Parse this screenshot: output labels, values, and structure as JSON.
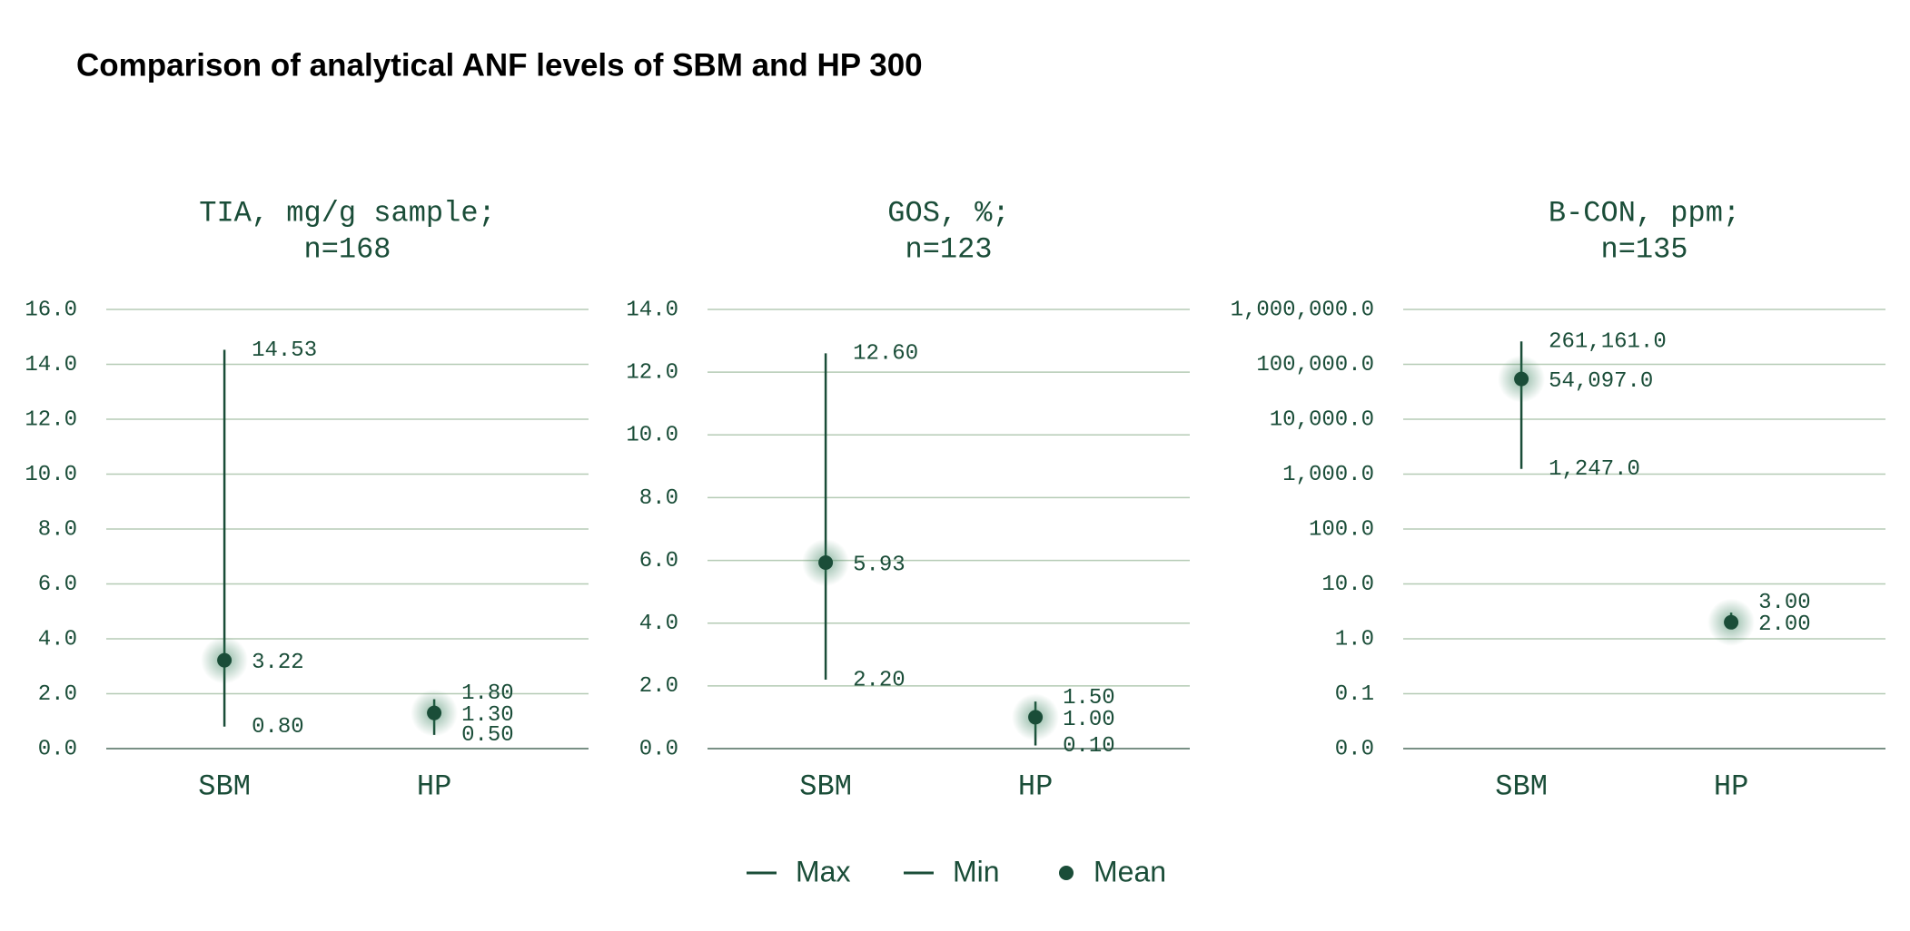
{
  "title": "Comparison of analytical ANF levels of SBM and HP 300",
  "chart_data": [
    {
      "type": "range",
      "title": [
        "TIA, mg/g sample;",
        "n=168"
      ],
      "categories": [
        "SBM",
        "HP"
      ],
      "ylim": [
        0,
        16
      ],
      "yticks": [
        {
          "value": 0,
          "label": "0.0"
        },
        {
          "value": 2,
          "label": "2.0"
        },
        {
          "value": 4,
          "label": "4.0"
        },
        {
          "value": 6,
          "label": "6.0"
        },
        {
          "value": 8,
          "label": "8.0"
        },
        {
          "value": 10,
          "label": "10.0"
        },
        {
          "value": 12,
          "label": "12.0"
        },
        {
          "value": 14,
          "label": "14.0"
        },
        {
          "value": 16,
          "label": "16.0"
        }
      ],
      "grid": true,
      "series": [
        {
          "name": "Max",
          "color": "#1a4d38",
          "marker": "line",
          "values": [
            14.53,
            1.8
          ],
          "value_labels": [
            "14.53",
            "1.80"
          ]
        },
        {
          "name": "Min",
          "color": "#1a4d38",
          "marker": "line",
          "values": [
            0.8,
            0.5
          ],
          "value_labels": [
            "0.80",
            "0.50"
          ]
        },
        {
          "name": "Mean",
          "color": "#1a4d38",
          "marker": "dot",
          "values": [
            3.22,
            1.3
          ],
          "value_labels": [
            "3.22",
            "1.30"
          ]
        }
      ]
    },
    {
      "type": "range",
      "title": [
        "GOS, %;",
        "n=123"
      ],
      "categories": [
        "SBM",
        "HP"
      ],
      "ylim": [
        0,
        14
      ],
      "yticks": [
        {
          "value": 0,
          "label": "0.0"
        },
        {
          "value": 2,
          "label": "2.0"
        },
        {
          "value": 4,
          "label": "4.0"
        },
        {
          "value": 6,
          "label": "6.0"
        },
        {
          "value": 8,
          "label": "8.0"
        },
        {
          "value": 10,
          "label": "10.0"
        },
        {
          "value": 12,
          "label": "12.0"
        },
        {
          "value": 14,
          "label": "14.0"
        }
      ],
      "grid": true,
      "series": [
        {
          "name": "Max",
          "color": "#1a4d38",
          "marker": "line",
          "values": [
            12.6,
            1.5
          ],
          "value_labels": [
            "12.60",
            "1.50"
          ]
        },
        {
          "name": "Min",
          "color": "#1a4d38",
          "marker": "line",
          "values": [
            2.2,
            0.1
          ],
          "value_labels": [
            "2.20",
            "0.10"
          ]
        },
        {
          "name": "Mean",
          "color": "#1a4d38",
          "marker": "dot",
          "values": [
            5.93,
            1.0
          ],
          "value_labels": [
            "5.93",
            "1.00"
          ]
        }
      ]
    },
    {
      "type": "range",
      "title": [
        "B-CON, ppm;",
        "n=135"
      ],
      "categories": [
        "SBM",
        "HP"
      ],
      "log_scale": true,
      "ylim": [
        0.01,
        1000000
      ],
      "yticks": [
        {
          "value": 0.01,
          "label": "0.0"
        },
        {
          "value": 0.1,
          "label": "0.1"
        },
        {
          "value": 1,
          "label": "1.0"
        },
        {
          "value": 10,
          "label": "10.0"
        },
        {
          "value": 100,
          "label": "100.0"
        },
        {
          "value": 1000,
          "label": "1,000.0"
        },
        {
          "value": 10000,
          "label": "10,000.0"
        },
        {
          "value": 100000,
          "label": "100,000.0"
        },
        {
          "value": 1000000,
          "label": "1,000,000.0"
        }
      ],
      "grid": true,
      "series": [
        {
          "name": "Max",
          "color": "#1a4d38",
          "marker": "line",
          "values": [
            261161,
            3
          ],
          "value_labels": [
            "261,161.0",
            "3.00"
          ]
        },
        {
          "name": "Min",
          "color": "#1a4d38",
          "marker": "line",
          "values": [
            1247,
            null
          ],
          "value_labels": [
            "1,247.0",
            null
          ]
        },
        {
          "name": "Mean",
          "color": "#1a4d38",
          "marker": "dot",
          "values": [
            54097,
            2
          ],
          "value_labels": [
            "54,097.0",
            "2.00"
          ]
        }
      ]
    }
  ]
}
